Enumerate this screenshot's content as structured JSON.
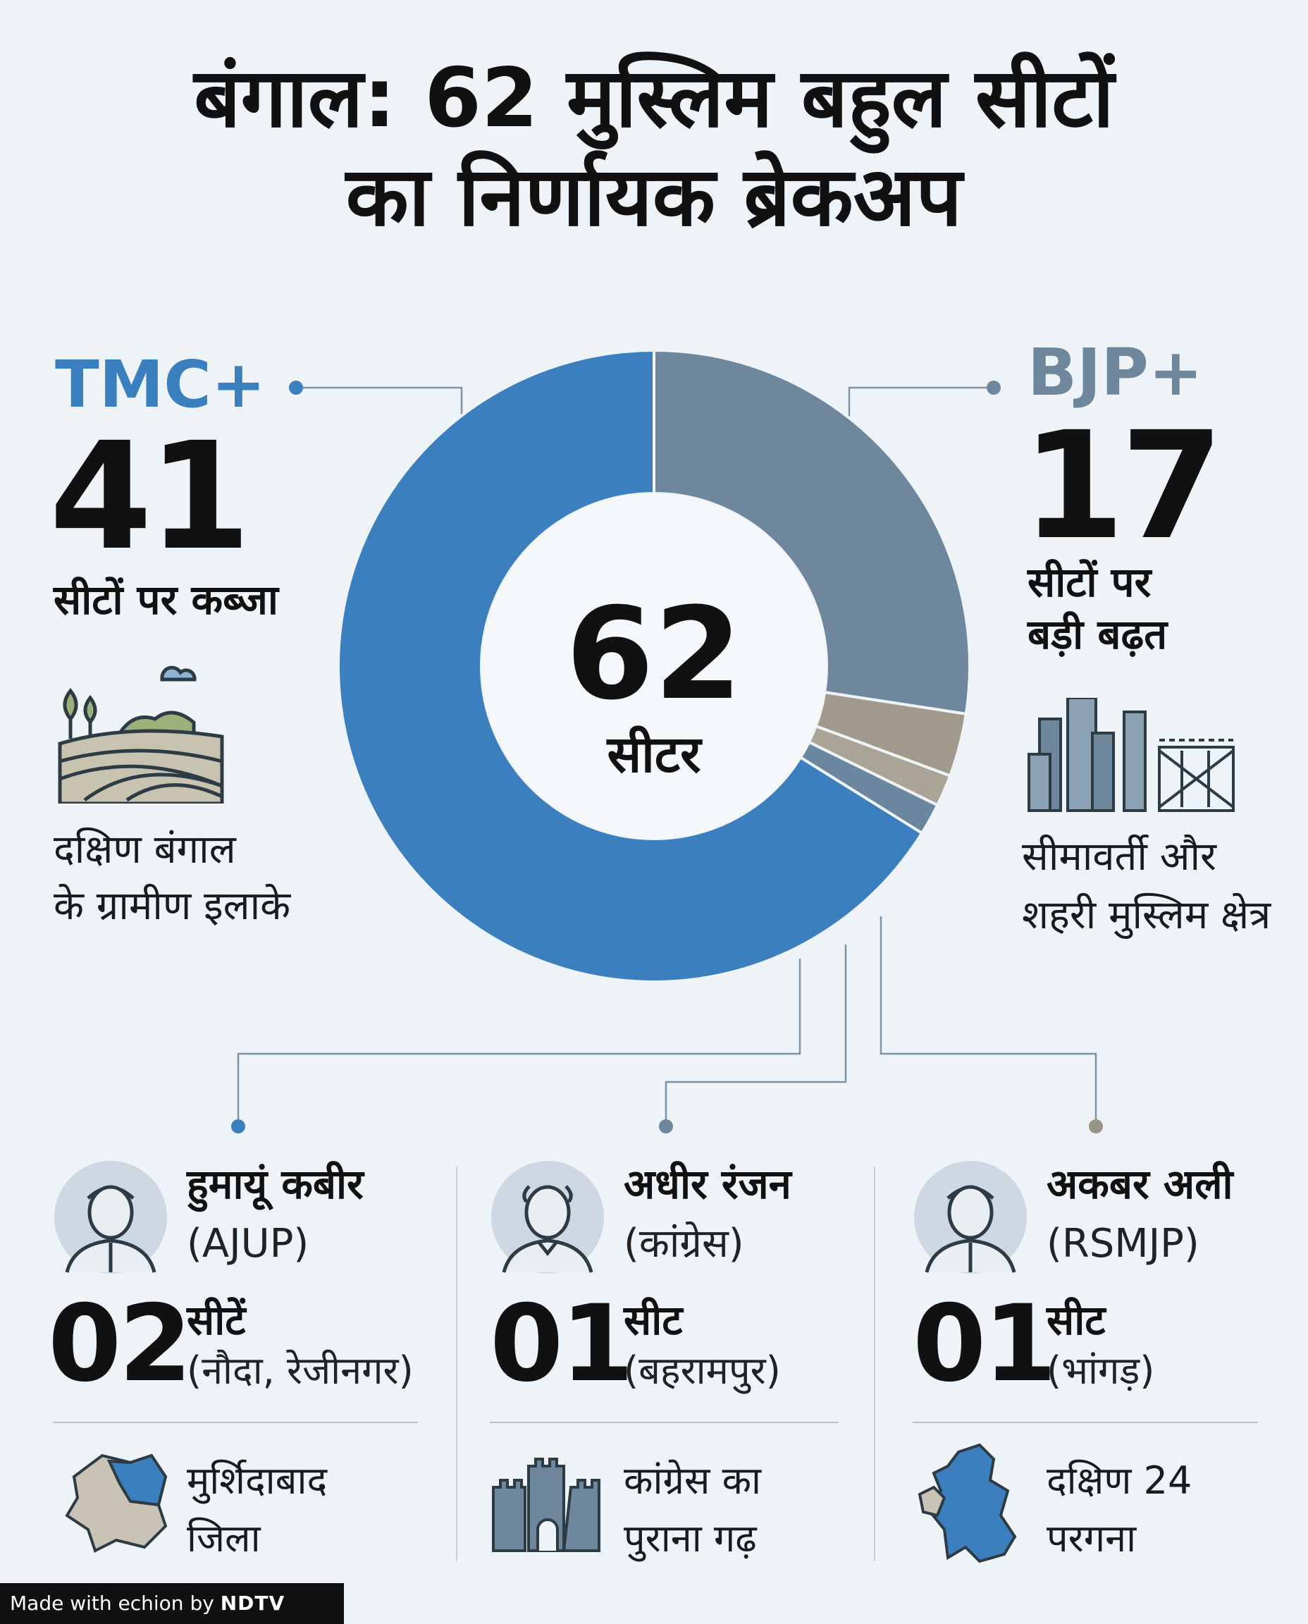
{
  "title": {
    "line1": "बंगाल: 62 मुस्लिम बहुल सीटों",
    "line2": "का निर्णायक ब्रेकअप"
  },
  "chart_data": {
    "type": "pie",
    "total": 62,
    "center_value": "62",
    "center_label": "सीटर",
    "slices": [
      {
        "name": "TMC+",
        "value": 41,
        "color": "#3b7fbf"
      },
      {
        "name": "BJP+",
        "value": 17,
        "color": "#6e879c"
      },
      {
        "name": "AJUP",
        "value": 2,
        "color": "#a2998d"
      },
      {
        "name": "कांग्रेस",
        "value": 1,
        "color": "#aaa496"
      },
      {
        "name": "RSMJP",
        "value": 1,
        "color": "#6b879f"
      }
    ]
  },
  "tmc": {
    "name": "TMC+",
    "seats": "41",
    "seats_label": "सीटों पर कब्जा",
    "region_line1": "दक्षिण बंगाल",
    "region_line2": "के ग्रामीण इलाके",
    "color": "#3b7fbf"
  },
  "bjp": {
    "name": "BJP+",
    "seats": "17",
    "seats_label_line1": "सीटों पर",
    "seats_label_line2": "बड़ी बढ़त",
    "region_line1": "सीमावर्ती और",
    "region_line2": "शहरी मुस्लिम क्षेत्र",
    "color": "#6e879c"
  },
  "candidates": [
    {
      "name": "हुमायूं कबीर",
      "party": "(AJUP)",
      "seats": "02",
      "seat_word": "सीटें",
      "places": "(नौदा, रेजीनगर)",
      "note_line1": "मुर्शिदाबाद",
      "note_line2": "जिला"
    },
    {
      "name": "अधीर रंजन",
      "party": "(कांग्रेस)",
      "seats": "01",
      "seat_word": "सीट",
      "places": "(बहरामपुर)",
      "note_line1": "कांग्रेस का",
      "note_line2": "पुराना गढ़"
    },
    {
      "name": "अकबर अली",
      "party": "(RSMJP)",
      "seats": "01",
      "seat_word": "सीट",
      "places": "(भांगड़)",
      "note_line1": "दक्षिण 24",
      "note_line2": "परगना"
    }
  ],
  "footer": {
    "made_with": "Made with",
    "brand": "echion",
    "by": "by",
    "publisher": "NDTV"
  },
  "icons": [
    "farmland-icon",
    "city-border-icon",
    "person-avatar-icon",
    "murshidabad-map-icon",
    "fort-icon",
    "south-24-parganas-map-icon"
  ]
}
